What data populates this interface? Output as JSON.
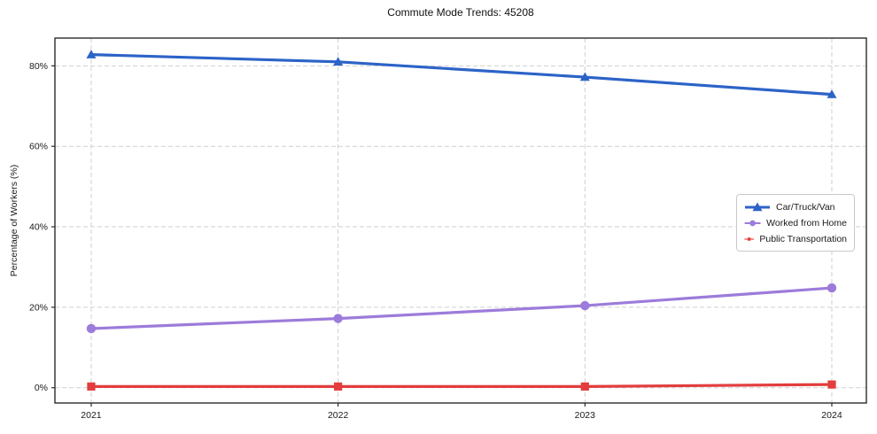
{
  "chart_data": {
    "type": "line",
    "title": "Commute Mode Trends: 45208",
    "xlabel": "",
    "ylabel": "Percentage of Workers (%)",
    "x": [
      2021,
      2022,
      2023,
      2024
    ],
    "x_tick_labels": [
      "2021",
      "2022",
      "2023",
      "2024"
    ],
    "yticks": [
      0,
      20,
      40,
      60,
      80
    ],
    "ytick_labels": [
      "0%",
      "20%",
      "40%",
      "60%",
      "80%"
    ],
    "ylim": [
      -3.8,
      86.9
    ],
    "xlim": [
      2020.853,
      2024.14
    ],
    "grid": true,
    "grid_style": "dashed",
    "legend_position": "center right",
    "series": [
      {
        "name": "Car/Truck/Van",
        "color": "#2c63c7",
        "marker": "triangle",
        "values": [
          82.8,
          81.0,
          77.2,
          72.9
        ]
      },
      {
        "name": "Worked from Home",
        "color": "#9d7bda",
        "marker": "circle",
        "values": [
          14.7,
          17.2,
          20.4,
          24.8
        ]
      },
      {
        "name": "Public Transportation",
        "color": "#e33d3d",
        "marker": "square",
        "values": [
          0.3,
          0.3,
          0.3,
          0.8
        ]
      }
    ]
  },
  "colors": {
    "background": "#ffffff",
    "grid": "#cfcfcf",
    "spine": "#2b2b2b",
    "tick_text": "#1a1a1a",
    "legend_border": "#c9c9c9"
  }
}
